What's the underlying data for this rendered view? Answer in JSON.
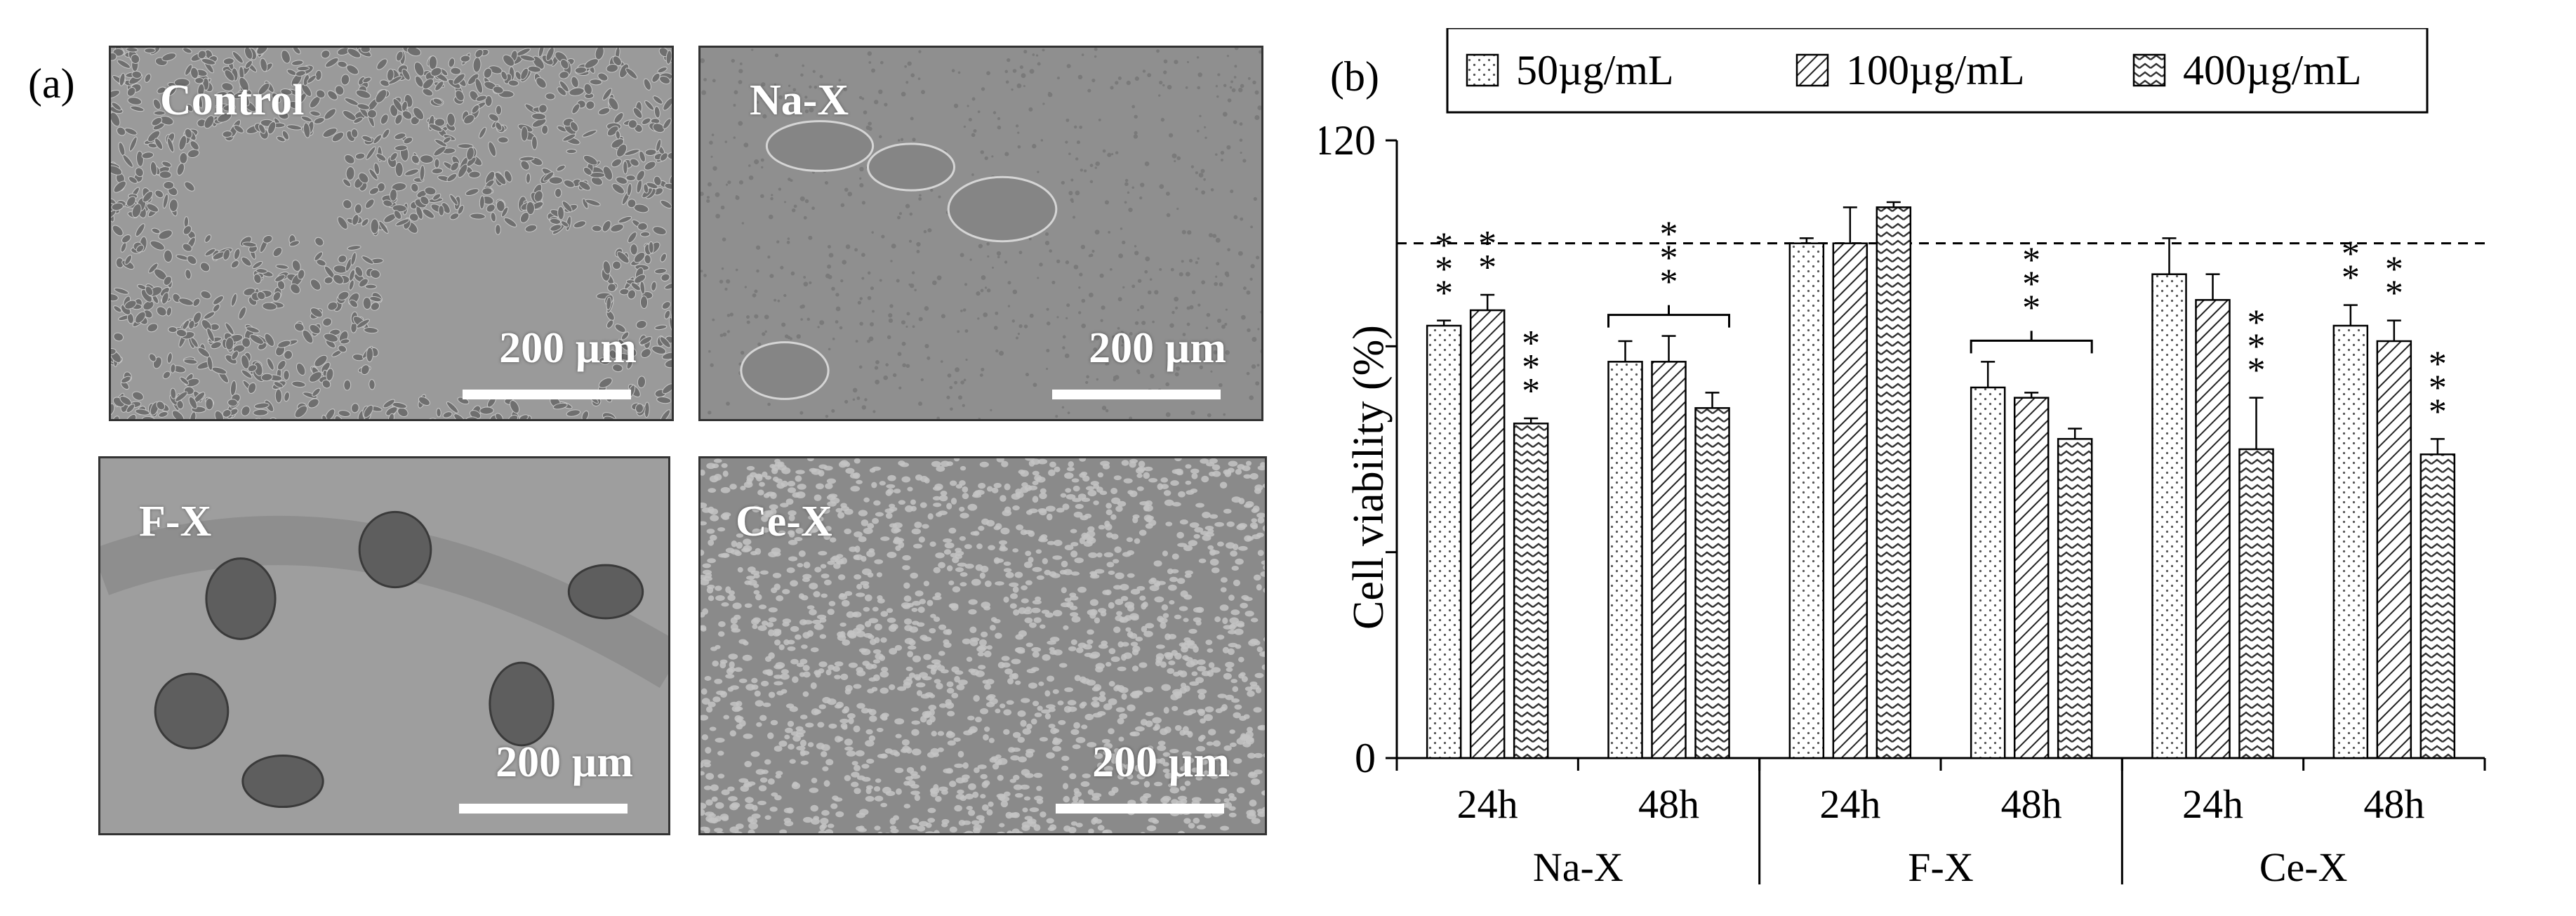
{
  "figure": {
    "panel_a_label": "(a)",
    "panel_b_label": "(b)",
    "micrographs": [
      {
        "name": "Control",
        "scale_text": "200 µm",
        "texture": "dense-cells-with-gaps",
        "tone": "#9a9a9a"
      },
      {
        "name": "Na-X",
        "scale_text": "200 µm",
        "texture": "sparse-clusters",
        "tone": "#8f8f8f"
      },
      {
        "name": "F-X",
        "scale_text": "200 µm",
        "texture": "large-clumps",
        "tone": "#9e9e9e"
      },
      {
        "name": "Ce-X",
        "scale_text": "200 µm",
        "texture": "dense-round-cells",
        "tone": "#8a8a8a"
      }
    ]
  },
  "chart_data": {
    "type": "bar",
    "ylabel": "Cell viability (%)",
    "ylim": [
      0,
      120
    ],
    "yticks": [
      "0",
      "120"
    ],
    "reference_line": 100,
    "legend": {
      "placement": "top",
      "entries": [
        "50µg/mL",
        "100µg/mL",
        "400µg/mL"
      ]
    },
    "series_patterns": [
      "dots",
      "diagonal-lines",
      "zigzag"
    ],
    "groups": [
      "Na-X",
      "F-X",
      "Ce-X"
    ],
    "times": [
      "24h",
      "48h"
    ],
    "categories": [
      "Na-X 24h",
      "Na-X 48h",
      "F-X 24h",
      "F-X 48h",
      "Ce-X 24h",
      "Ce-X 48h"
    ],
    "series": [
      {
        "name": "50µg/mL",
        "values": [
          84,
          77,
          100,
          72,
          94,
          84
        ],
        "errors": [
          1,
          4,
          1,
          5,
          7,
          4
        ]
      },
      {
        "name": "100µg/mL",
        "values": [
          87,
          77,
          100,
          70,
          89,
          81
        ],
        "errors": [
          3,
          5,
          7,
          1,
          5,
          4
        ]
      },
      {
        "name": "400µg/mL",
        "values": [
          65,
          68,
          107,
          62,
          60,
          59
        ],
        "errors": [
          1,
          3,
          1,
          2,
          10,
          3
        ]
      }
    ],
    "significance": [
      {
        "category": 0,
        "series": 0,
        "text": "***"
      },
      {
        "category": 0,
        "series": 1,
        "text": "**"
      },
      {
        "category": 0,
        "series": 2,
        "text": "***"
      },
      {
        "category": 1,
        "bracket": true,
        "text": "***"
      },
      {
        "category": 3,
        "bracket": true,
        "text": "***"
      },
      {
        "category": 4,
        "series": 2,
        "text": "***"
      },
      {
        "category": 5,
        "series": 0,
        "text": "**"
      },
      {
        "category": 5,
        "series": 1,
        "text": "**"
      },
      {
        "category": 5,
        "series": 2,
        "text": "***"
      }
    ]
  }
}
